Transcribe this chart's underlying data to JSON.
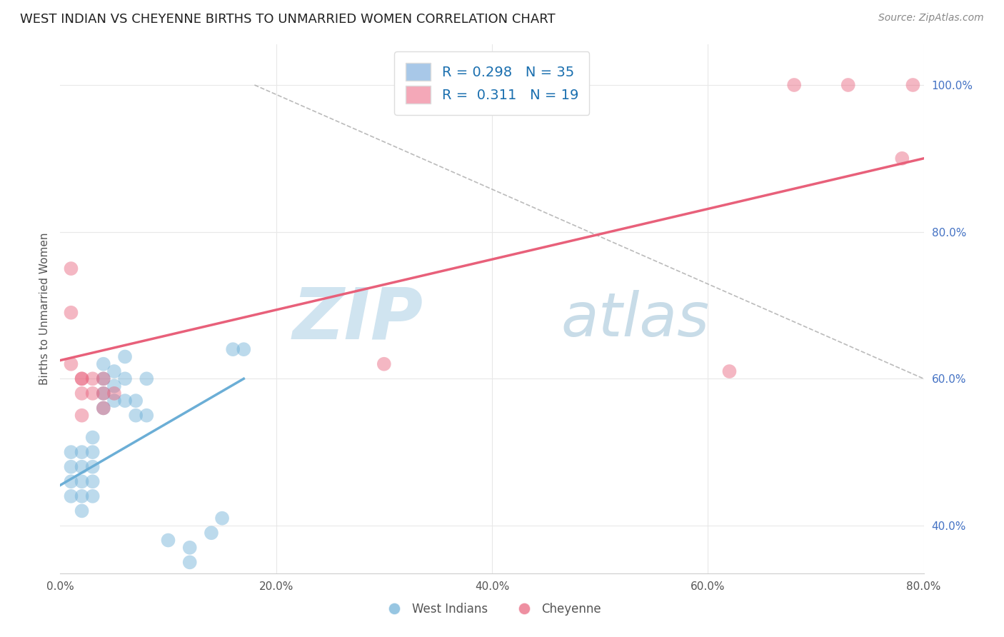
{
  "title": "WEST INDIAN VS CHEYENNE BIRTHS TO UNMARRIED WOMEN CORRELATION CHART",
  "source_text": "Source: ZipAtlas.com",
  "ylabel": "Births to Unmarried Women",
  "xlim": [
    0.0,
    0.8
  ],
  "ylim": [
    0.335,
    1.055
  ],
  "y_ticks": [
    0.4,
    0.6,
    0.8,
    1.0
  ],
  "y_tick_labels": [
    "40.0%",
    "60.0%",
    "80.0%",
    "100.0%"
  ],
  "x_ticks": [
    0.0,
    0.2,
    0.4,
    0.6,
    0.8
  ],
  "x_tick_labels": [
    "0.0%",
    "20.0%",
    "40.0%",
    "60.0%",
    "80.0%"
  ],
  "legend1_label": "R = 0.298   N = 35",
  "legend2_label": "R =  0.311   N = 19",
  "legend1_color": "#a8c8e8",
  "legend2_color": "#f4a8b8",
  "watermark_zip": "ZIP",
  "watermark_atlas": "atlas",
  "watermark_color_zip": "#d0e4f0",
  "watermark_color_atlas": "#c8dce8",
  "blue_scatter_x": [
    0.01,
    0.01,
    0.01,
    0.01,
    0.02,
    0.02,
    0.02,
    0.02,
    0.02,
    0.03,
    0.03,
    0.03,
    0.03,
    0.03,
    0.04,
    0.04,
    0.04,
    0.04,
    0.05,
    0.05,
    0.05,
    0.06,
    0.06,
    0.06,
    0.07,
    0.07,
    0.08,
    0.08,
    0.1,
    0.12,
    0.12,
    0.14,
    0.15,
    0.16,
    0.17
  ],
  "blue_scatter_y": [
    0.44,
    0.46,
    0.48,
    0.5,
    0.42,
    0.44,
    0.46,
    0.48,
    0.5,
    0.44,
    0.46,
    0.48,
    0.5,
    0.52,
    0.56,
    0.58,
    0.6,
    0.62,
    0.57,
    0.59,
    0.61,
    0.57,
    0.6,
    0.63,
    0.55,
    0.57,
    0.55,
    0.6,
    0.38,
    0.37,
    0.35,
    0.39,
    0.41,
    0.64,
    0.64
  ],
  "pink_scatter_x": [
    0.01,
    0.01,
    0.01,
    0.02,
    0.02,
    0.02,
    0.02,
    0.03,
    0.03,
    0.04,
    0.04,
    0.04,
    0.05,
    0.3,
    0.62,
    0.68,
    0.73,
    0.78,
    0.79
  ],
  "pink_scatter_y": [
    0.75,
    0.69,
    0.62,
    0.6,
    0.6,
    0.58,
    0.55,
    0.58,
    0.6,
    0.6,
    0.58,
    0.56,
    0.58,
    0.62,
    0.61,
    1.0,
    1.0,
    0.9,
    1.0
  ],
  "blue_line_x": [
    0.0,
    0.17
  ],
  "blue_line_y": [
    0.455,
    0.6
  ],
  "pink_line_x": [
    0.0,
    0.8
  ],
  "pink_line_y": [
    0.625,
    0.9
  ],
  "dashed_line_x": [
    0.18,
    0.8
  ],
  "dashed_line_y": [
    1.0,
    0.6
  ],
  "blue_color": "#6baed6",
  "pink_color": "#e8607a",
  "dashed_color": "#aaaaaa",
  "grid_color": "#e8e8e8",
  "watermark_fontsize_zip": 72,
  "watermark_fontsize_atlas": 72
}
